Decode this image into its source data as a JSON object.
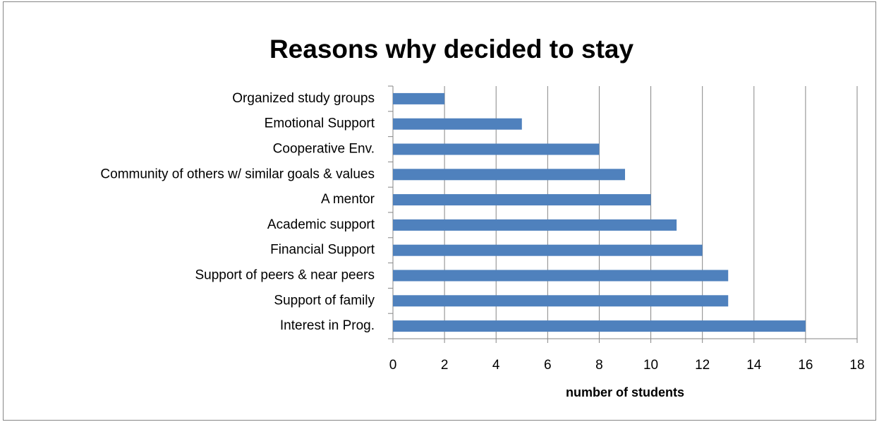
{
  "chart_data": {
    "type": "barh",
    "title": "Reasons why decided to stay",
    "xlabel": "number of students",
    "categories": [
      "Organized study groups",
      "Emotional Support",
      "Cooperative Env.",
      "Community of others w/ similar goals & values",
      "A mentor",
      "Academic support",
      "Financial Support",
      "Support of peers & near peers",
      "Support of family",
      "Interest in Prog."
    ],
    "values": [
      2,
      5,
      8,
      9,
      10,
      11,
      12,
      13,
      13,
      16
    ],
    "color": "#4f81bd",
    "xlim": [
      0,
      18
    ],
    "xticks": [
      0,
      2,
      4,
      6,
      8,
      10,
      12,
      14,
      16,
      18
    ],
    "grid": true
  }
}
